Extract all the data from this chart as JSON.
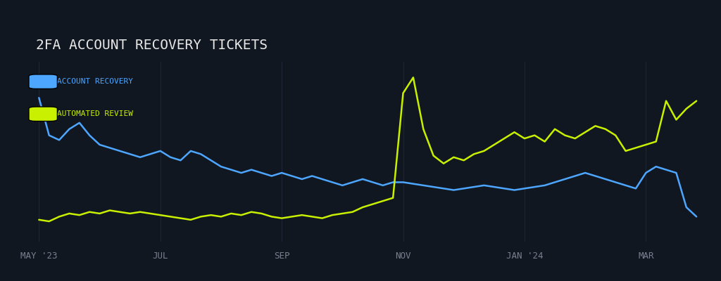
{
  "title": "2FA ACCOUNT RECOVERY TICKETS",
  "background_color": "#111720",
  "legend_labels": [
    "ACCOUNT RECOVERY",
    "AUTOMATED REVIEW"
  ],
  "legend_colors": [
    "#4da6ff",
    "#c8f000"
  ],
  "x_tick_labels": [
    "MAY '23",
    "JUL",
    "SEP",
    "NOV",
    "JAN '24",
    "MAR"
  ],
  "account_recovery": [
    92,
    68,
    65,
    72,
    76,
    68,
    62,
    60,
    58,
    56,
    54,
    56,
    58,
    54,
    52,
    58,
    56,
    52,
    48,
    46,
    44,
    46,
    44,
    42,
    44,
    42,
    40,
    42,
    40,
    38,
    36,
    38,
    40,
    38,
    36,
    38,
    38,
    37,
    36,
    35,
    34,
    33,
    34,
    35,
    36,
    35,
    34,
    33,
    34,
    35,
    36,
    38,
    40,
    42,
    44,
    42,
    40,
    38,
    36,
    34,
    44,
    48,
    46,
    44,
    22,
    16
  ],
  "automated_review": [
    14,
    13,
    16,
    18,
    17,
    19,
    18,
    20,
    19,
    18,
    19,
    18,
    17,
    16,
    15,
    14,
    16,
    17,
    16,
    18,
    17,
    19,
    18,
    16,
    15,
    16,
    17,
    16,
    15,
    17,
    18,
    19,
    22,
    24,
    26,
    28,
    95,
    105,
    72,
    55,
    50,
    54,
    52,
    56,
    58,
    62,
    66,
    70,
    66,
    68,
    64,
    72,
    68,
    66,
    70,
    74,
    72,
    68,
    58,
    60,
    62,
    64,
    90,
    78,
    85,
    90
  ],
  "num_points": 66,
  "ylim": [
    0,
    115
  ],
  "title_color": "#e8e8e8",
  "tick_color": "#7a8090",
  "line_width": 1.8,
  "title_fontsize": 14,
  "label_fontsize": 9
}
